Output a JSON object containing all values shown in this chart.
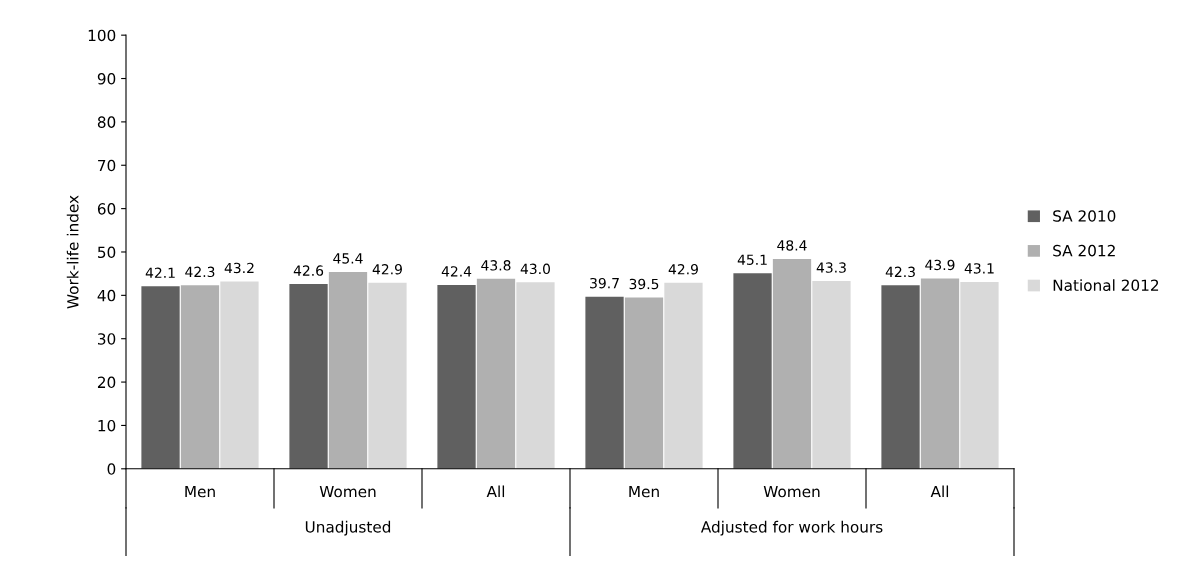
{
  "chart_data": {
    "type": "bar",
    "ylabel": "Work-life index",
    "categories": [
      "Men",
      "Women",
      "All",
      "Men",
      "Women",
      "All"
    ],
    "series": [
      {
        "name": "SA 2010",
        "color": "#606060",
        "values": [
          42.1,
          42.6,
          42.4,
          39.7,
          45.1,
          42.3
        ],
        "value_labels": [
          "42.1",
          "42.6",
          "42.4",
          "39.7",
          "45.1",
          "42.3"
        ]
      },
      {
        "name": "SA 2012",
        "color": "#b0b0b0",
        "values": [
          42.3,
          45.4,
          43.8,
          39.5,
          48.4,
          43.9
        ],
        "value_labels": [
          "42.3",
          "45.4",
          "43.8",
          "39.5",
          "48.4",
          "43.9"
        ]
      },
      {
        "name": "National 2012",
        "color": "#d9d9d9",
        "values": [
          43.2,
          42.9,
          43.0,
          42.9,
          43.3,
          43.1
        ],
        "value_labels": [
          "43.2",
          "42.9",
          "43.0",
          "42.9",
          "43.3",
          "43.1"
        ]
      }
    ],
    "annotations": [
      "Unadjusted",
      "Adjusted for work hours"
    ],
    "ylim": [
      0,
      100
    ],
    "yticks": [
      0,
      10,
      20,
      30,
      40,
      50,
      60,
      70,
      80,
      90,
      100
    ],
    "grid": false,
    "legend": "right"
  }
}
